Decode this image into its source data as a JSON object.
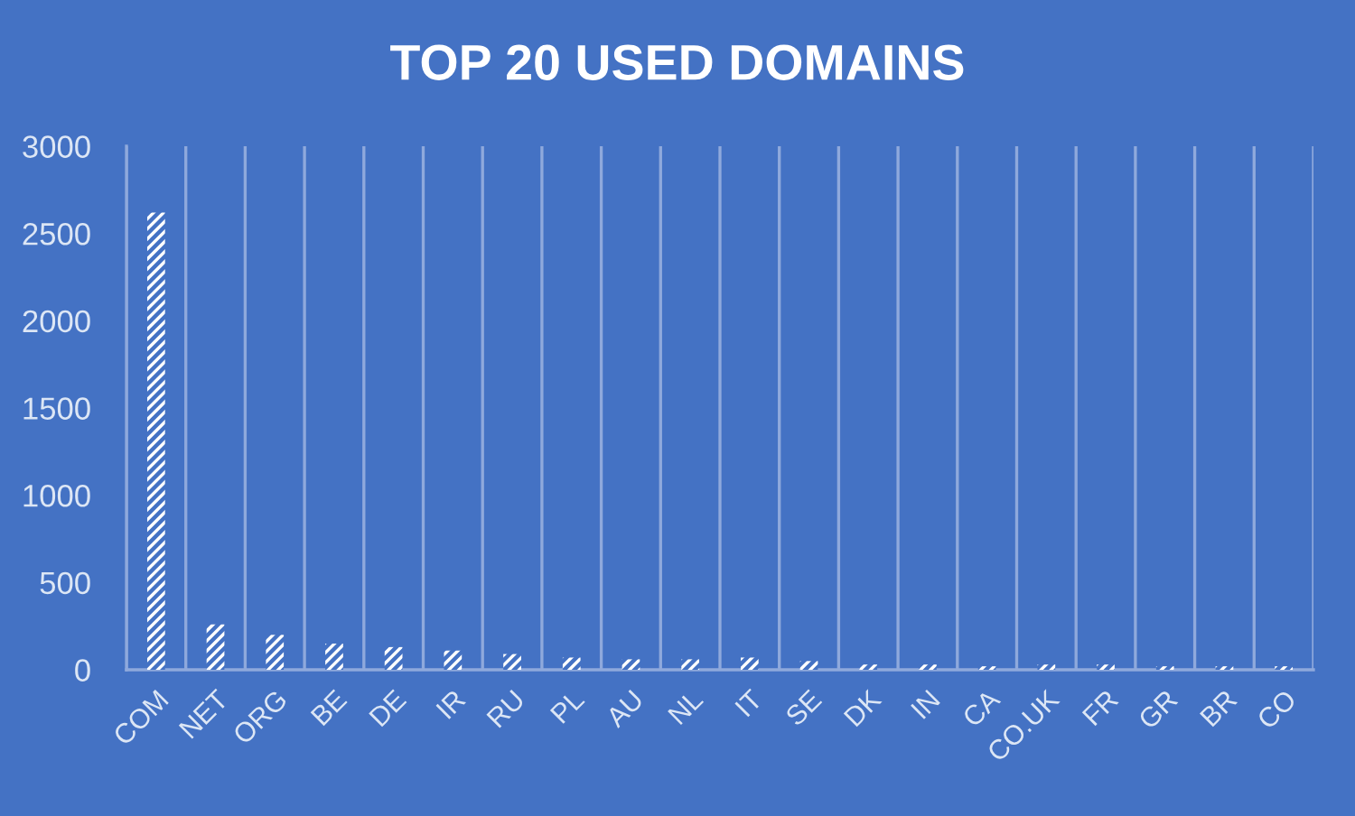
{
  "chart_data": {
    "type": "bar",
    "title": "TOP 20 USED DOMAINS",
    "categories": [
      "COM",
      "NET",
      "ORG",
      "BE",
      "DE",
      "IR",
      "RU",
      "PL",
      "AU",
      "NL",
      "IT",
      "SE",
      "DK",
      "IN",
      "CA",
      "CO.UK",
      "FR",
      "GR",
      "BR",
      "CO"
    ],
    "values": [
      2620,
      260,
      200,
      150,
      130,
      110,
      90,
      70,
      60,
      60,
      70,
      50,
      30,
      30,
      20,
      30,
      30,
      20,
      20,
      20
    ],
    "color": "#ffffff",
    "ylim": [
      0,
      3000
    ],
    "yticks": [
      0,
      500,
      1000,
      1500,
      2000,
      2500,
      3000
    ],
    "grid": "x"
  }
}
